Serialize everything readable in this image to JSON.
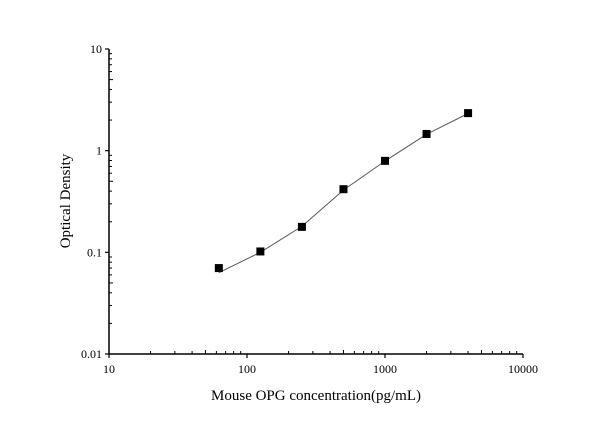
{
  "chart_data": {
    "type": "scatter",
    "title": "",
    "xlabel": "Mouse OPG concentration(pg/mL)",
    "ylabel": "Optical Density",
    "x_scale": "log",
    "y_scale": "log",
    "xlim": [
      10,
      10000
    ],
    "ylim": [
      0.01,
      10
    ],
    "x_ticks": [
      "10",
      "100",
      "1000",
      "10000"
    ],
    "y_ticks": [
      "0.01",
      "0.1",
      "1",
      "10"
    ],
    "grid": false,
    "legend": "none",
    "series": [
      {
        "marker": "square",
        "color": "#000000",
        "x": [
          62.5,
          125,
          250,
          500,
          1000,
          2000,
          4000
        ],
        "y": [
          0.07,
          0.102,
          0.178,
          0.418,
          0.794,
          1.46,
          2.34
        ]
      }
    ],
    "fit_curve": {
      "color": "#555555",
      "x": [
        62.5,
        125,
        250,
        500,
        1000,
        2000,
        4000
      ],
      "y": [
        0.063,
        0.1,
        0.18,
        0.41,
        0.79,
        1.45,
        2.32
      ]
    }
  }
}
